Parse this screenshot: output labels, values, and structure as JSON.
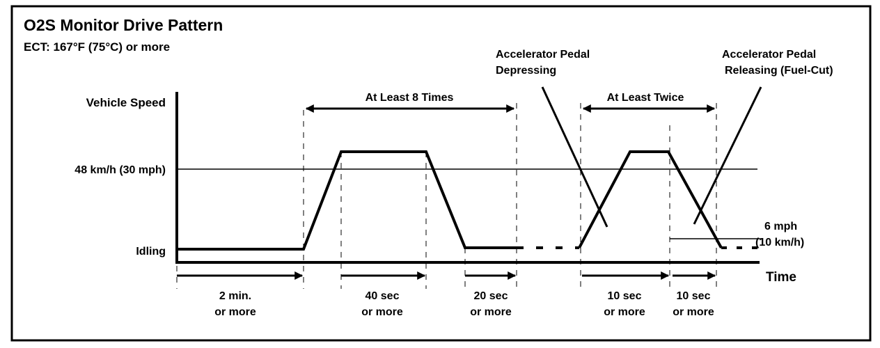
{
  "title": "O2S Monitor Drive Pattern",
  "subtitle": "ECT: 167°F (75°C) or more",
  "axes": {
    "y_label": "Vehicle Speed",
    "x_label": "Time",
    "speed_level": "48 km/h (30 mph)",
    "idle_level": "Idling",
    "low_speed_line": [
      "6 mph",
      "(10 km/h)"
    ]
  },
  "annotations": {
    "repeat_8": "At Least 8 Times",
    "repeat_2": "At Least Twice",
    "pedal_depress": [
      "Accelerator Pedal",
      "Depressing"
    ],
    "pedal_release": [
      "Accelerator Pedal",
      "Releasing (Fuel-Cut)"
    ]
  },
  "durations": [
    [
      "2 min.",
      "or more"
    ],
    [
      "40 sec",
      "or more"
    ],
    [
      "20 sec",
      "or more"
    ],
    [
      "10 sec",
      "or more"
    ],
    [
      "10 sec",
      "or more"
    ]
  ],
  "colors": {
    "line": "#000000",
    "background": "#ffffff"
  }
}
